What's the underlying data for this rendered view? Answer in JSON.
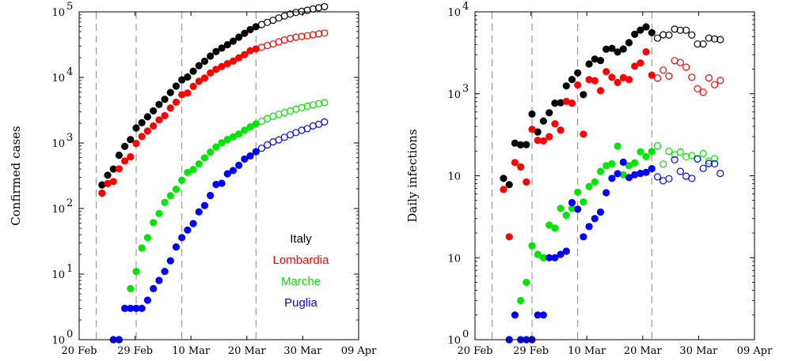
{
  "chart_data": [
    {
      "type": "scatter",
      "xlabel": "",
      "ylabel": "Confirmed cases",
      "yscale": "log",
      "ylim": [
        1,
        100000
      ],
      "xlim": [
        "2020-02-20",
        "2020-04-09"
      ],
      "x_ticks": [
        "20 Feb",
        "29 Feb",
        "10 Mar",
        "20 Mar",
        "30 Mar",
        "09 Apr"
      ],
      "y_ticks": [
        {
          "base": "10",
          "exp": "0"
        },
        {
          "base": "10",
          "exp": "1"
        },
        {
          "base": "10",
          "exp": "2"
        },
        {
          "base": "10",
          "exp": "3"
        },
        {
          "base": "10",
          "exp": "4"
        },
        {
          "base": "10",
          "exp": "5"
        }
      ],
      "vlines": [
        "2020-02-23",
        "2020-03-01",
        "2020-03-09",
        "2020-03-22"
      ],
      "grid": false,
      "legend": {
        "placement": "bottom-right"
      },
      "filled_until": "2020-03-22",
      "open_from": "2020-03-23",
      "series": [
        {
          "name": "Italy",
          "color": "#000000",
          "start": "2020-02-24",
          "values": [
            229,
            322,
            400,
            650,
            888,
            1128,
            1694,
            2036,
            2502,
            3089,
            3858,
            4636,
            5883,
            7375,
            9172,
            10149,
            12462,
            15113,
            17660,
            21157,
            24747,
            27980,
            31506,
            35713,
            41035,
            47021,
            53578,
            59138,
            63927,
            69176,
            74386,
            80539,
            86498,
            92472,
            97689,
            101739,
            105792,
            110574,
            115242,
            119827
          ]
        },
        {
          "name": "Lombardia",
          "color": "#ff0000",
          "start": "2020-02-24",
          "values": [
            172,
            240,
            258,
            403,
            531,
            615,
            984,
            1254,
            1520,
            1820,
            2251,
            2612,
            3420,
            4189,
            5469,
            5791,
            7280,
            8725,
            9820,
            11685,
            13272,
            14649,
            16220,
            17713,
            19884,
            22264,
            25515,
            27206,
            28761,
            30703,
            32346,
            34889,
            37298,
            39415,
            41007,
            42161,
            43208,
            44773,
            46065,
            47520
          ]
        },
        {
          "name": "Marche",
          "color": "#00e600",
          "start": "2020-02-26",
          "values": [
            1,
            1,
            3,
            6,
            11,
            25,
            36,
            61,
            84,
            124,
            157,
            197,
            271,
            355,
            394,
            479,
            592,
            725,
            869,
            1009,
            1133,
            1242,
            1371,
            1564,
            1763,
            1958,
            2130,
            2354,
            2564,
            2741,
            2902,
            3087,
            3288,
            3457,
            3643,
            3814,
            3965,
            4127
          ]
        },
        {
          "name": "Puglia",
          "color": "#0000ff",
          "start": "2020-02-26",
          "values": [
            1,
            1,
            3,
            3,
            3,
            3,
            4,
            6,
            8,
            11,
            16,
            26,
            36,
            47,
            59,
            89,
            111,
            158,
            233,
            243,
            339,
            380,
            457,
            568,
            634,
            738,
            831,
            934,
            1039,
            1113,
            1220,
            1330,
            1443,
            1565,
            1656,
            1819,
            1926,
            2090
          ]
        }
      ]
    },
    {
      "type": "scatter",
      "xlabel": "",
      "ylabel": "Daily infections",
      "yscale": "log",
      "ylim": [
        1,
        10000
      ],
      "xlim": [
        "2020-02-20",
        "2020-04-09"
      ],
      "x_ticks": [
        "20 Feb",
        "29 Feb",
        "10 Mar",
        "20 Mar",
        "30 Mar",
        "09 Apr"
      ],
      "y_ticks": [
        {
          "base": "10",
          "exp": "0"
        },
        {
          "base": "10",
          "exp": ""
        },
        {
          "base": "10",
          "exp": ""
        },
        {
          "base": "10",
          "exp": "3"
        },
        {
          "base": "10",
          "exp": "4"
        }
      ],
      "vlines": [
        "2020-02-23",
        "2020-03-01",
        "2020-03-09",
        "2020-03-22"
      ],
      "grid": false,
      "filled_until": "2020-03-22",
      "open_from": "2020-03-23",
      "series": [
        {
          "name": "Italy",
          "color": "#000000",
          "points": [
            [
              "2020-02-25",
              93
            ],
            [
              "2020-02-26",
              78
            ],
            [
              "2020-02-27",
              250
            ],
            [
              "2020-02-28",
              238
            ],
            [
              "2020-02-29",
              240
            ],
            [
              "2020-03-01",
              566
            ],
            [
              "2020-03-02",
              342
            ],
            [
              "2020-03-03",
              466
            ],
            [
              "2020-03-04",
              587
            ],
            [
              "2020-03-05",
              769
            ],
            [
              "2020-03-06",
              778
            ],
            [
              "2020-03-07",
              1247
            ],
            [
              "2020-03-08",
              1492
            ],
            [
              "2020-03-09",
              1797
            ],
            [
              "2020-03-10",
              977
            ],
            [
              "2020-03-11",
              2313
            ],
            [
              "2020-03-12",
              2651
            ],
            [
              "2020-03-13",
              2547
            ],
            [
              "2020-03-14",
              3497
            ],
            [
              "2020-03-15",
              3590
            ],
            [
              "2020-03-16",
              3233
            ],
            [
              "2020-03-17",
              3526
            ],
            [
              "2020-03-18",
              4207
            ],
            [
              "2020-03-19",
              5322
            ],
            [
              "2020-03-20",
              5986
            ],
            [
              "2020-03-21",
              6557
            ],
            [
              "2020-03-22",
              5560
            ],
            [
              "2020-03-23",
              4789
            ],
            [
              "2020-03-24",
              5249
            ],
            [
              "2020-03-25",
              5210
            ],
            [
              "2020-03-26",
              6153
            ],
            [
              "2020-03-27",
              5959
            ],
            [
              "2020-03-28",
              5974
            ],
            [
              "2020-03-29",
              5217
            ],
            [
              "2020-03-30",
              4050
            ],
            [
              "2020-03-31",
              4053
            ],
            [
              "2020-04-01",
              4782
            ],
            [
              "2020-04-02",
              4668
            ],
            [
              "2020-04-03",
              4585
            ]
          ]
        },
        {
          "name": "Lombardia",
          "color": "#ff0000",
          "points": [
            [
              "2020-02-25",
              68
            ],
            [
              "2020-02-26",
              18
            ],
            [
              "2020-02-27",
              145
            ],
            [
              "2020-02-28",
              128
            ],
            [
              "2020-02-29",
              84
            ],
            [
              "2020-03-01",
              369
            ],
            [
              "2020-03-02",
              270
            ],
            [
              "2020-03-03",
              266
            ],
            [
              "2020-03-04",
              300
            ],
            [
              "2020-03-05",
              431
            ],
            [
              "2020-03-06",
              361
            ],
            [
              "2020-03-07",
              808
            ],
            [
              "2020-03-08",
              769
            ],
            [
              "2020-03-09",
              1280
            ],
            [
              "2020-03-10",
              322
            ],
            [
              "2020-03-11",
              1489
            ],
            [
              "2020-03-12",
              1445
            ],
            [
              "2020-03-13",
              1095
            ],
            [
              "2020-03-14",
              1865
            ],
            [
              "2020-03-15",
              1587
            ],
            [
              "2020-03-16",
              1377
            ],
            [
              "2020-03-17",
              1571
            ],
            [
              "2020-03-18",
              1493
            ],
            [
              "2020-03-19",
              2171
            ],
            [
              "2020-03-20",
              2380
            ],
            [
              "2020-03-21",
              3251
            ],
            [
              "2020-03-22",
              1691
            ],
            [
              "2020-03-23",
              1555
            ],
            [
              "2020-03-24",
              1942
            ],
            [
              "2020-03-25",
              1643
            ],
            [
              "2020-03-26",
              2543
            ],
            [
              "2020-03-27",
              2409
            ],
            [
              "2020-03-28",
              2117
            ],
            [
              "2020-03-29",
              1592
            ],
            [
              "2020-03-30",
              1154
            ],
            [
              "2020-03-31",
              1047
            ],
            [
              "2020-04-01",
              1565
            ],
            [
              "2020-04-02",
              1292
            ],
            [
              "2020-04-03",
              1455
            ]
          ]
        },
        {
          "name": "Marche",
          "color": "#00e600",
          "points": [
            [
              "2020-02-26",
              1
            ],
            [
              "2020-02-27",
              2
            ],
            [
              "2020-02-28",
              3
            ],
            [
              "2020-02-29",
              5
            ],
            [
              "2020-03-01",
              14
            ],
            [
              "2020-03-02",
              11
            ],
            [
              "2020-03-03",
              10
            ],
            [
              "2020-03-04",
              25
            ],
            [
              "2020-03-05",
              23
            ],
            [
              "2020-03-06",
              40
            ],
            [
              "2020-03-07",
              33
            ],
            [
              "2020-03-08",
              40
            ],
            [
              "2020-03-09",
              63
            ],
            [
              "2020-03-10",
              48
            ],
            [
              "2020-03-11",
              74
            ],
            [
              "2020-03-12",
              84
            ],
            [
              "2020-03-13",
              113
            ],
            [
              "2020-03-14",
              133
            ],
            [
              "2020-03-15",
              140
            ],
            [
              "2020-03-16",
              230
            ],
            [
              "2020-03-17",
              103
            ],
            [
              "2020-03-18",
              133
            ],
            [
              "2020-03-19",
              144
            ],
            [
              "2020-03-20",
              196
            ],
            [
              "2020-03-21",
              171
            ],
            [
              "2020-03-22",
              197
            ],
            [
              "2020-03-23",
              232
            ],
            [
              "2020-03-24",
              139
            ],
            [
              "2020-03-25",
              199
            ],
            [
              "2020-03-26",
              181
            ],
            [
              "2020-03-27",
              195
            ],
            [
              "2020-03-28",
              171
            ],
            [
              "2020-03-29",
              177
            ],
            [
              "2020-03-30",
              161
            ],
            [
              "2020-03-31",
              186
            ],
            [
              "2020-04-01",
              151
            ],
            [
              "2020-04-02",
              162
            ]
          ]
        },
        {
          "name": "Puglia",
          "color": "#0000ff",
          "points": [
            [
              "2020-02-26",
              1
            ],
            [
              "2020-02-27",
              2
            ],
            [
              "2020-02-28",
              1
            ],
            [
              "2020-02-29",
              1
            ],
            [
              "2020-03-01",
              1
            ],
            [
              "2020-03-02",
              2
            ],
            [
              "2020-03-03",
              2
            ],
            [
              "2020-03-04",
              10
            ],
            [
              "2020-03-05",
              10
            ],
            [
              "2020-03-06",
              11
            ],
            [
              "2020-03-07",
              12
            ],
            [
              "2020-03-08",
              47
            ],
            [
              "2020-03-09",
              39
            ],
            [
              "2020-03-10",
              18
            ],
            [
              "2020-03-11",
              24
            ],
            [
              "2020-03-12",
              30
            ],
            [
              "2020-03-13",
              36
            ],
            [
              "2020-03-14",
              62
            ],
            [
              "2020-03-15",
              93
            ],
            [
              "2020-03-16",
              106
            ],
            [
              "2020-03-17",
              146
            ],
            [
              "2020-03-18",
              95
            ],
            [
              "2020-03-19",
              103
            ],
            [
              "2020-03-20",
              107
            ],
            [
              "2020-03-21",
              110
            ],
            [
              "2020-03-22",
              122
            ],
            [
              "2020-03-23",
              97
            ],
            [
              "2020-03-24",
              87
            ],
            [
              "2020-03-25",
              92
            ],
            [
              "2020-03-26",
              157
            ],
            [
              "2020-03-27",
              113
            ],
            [
              "2020-03-28",
              99
            ],
            [
              "2020-03-29",
              93
            ],
            [
              "2020-03-30",
              160
            ],
            [
              "2020-03-31",
              123
            ],
            [
              "2020-04-01",
              141
            ],
            [
              "2020-04-02",
              140
            ],
            [
              "2020-04-03",
              107
            ]
          ]
        }
      ]
    }
  ]
}
